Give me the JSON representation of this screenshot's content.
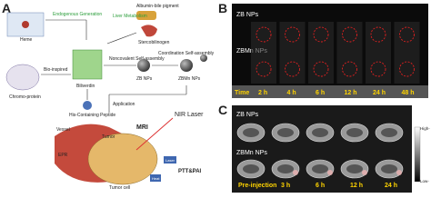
{
  "panel_a": {
    "label": "A",
    "heme": "Heme",
    "endogenous": "Endogenous Generation",
    "liver": "Liver Metabolism",
    "albumin": "Albumin-bile pigment",
    "stercobilinogen": "Stercobilinogen",
    "bio_inspired": "Bio-inspired",
    "chromoprotein": "Chromo-protein",
    "biliverdin": "Biliverdin",
    "peptide": "His-Containing Peptide",
    "noncovalent": "Noncovalent Self-assembly",
    "coordination": "Coordination Self-assembly",
    "zb": "ZB NPs",
    "zbmn": "ZBMn NPs",
    "application": "Application",
    "nir": "NIR Laser",
    "mri": "MRI",
    "vessel": "Vessel",
    "tumor": "Tumor",
    "epr": "EPR",
    "tumor_cell": "Tumor cell",
    "ptt": "PTT&PAI",
    "laser": "Laser",
    "heat": "Heat"
  },
  "panel_b": {
    "label": "B",
    "row1": "ZB NPs",
    "row2": "ZBMn NPs",
    "time_title": "Time",
    "times": [
      "2 h",
      "4 h",
      "6 h",
      "12 h",
      "24 h",
      "48 h"
    ]
  },
  "panel_c": {
    "label": "C",
    "row1": "ZB NPs",
    "row2": "ZBMn NPs",
    "times": [
      "Pre-injection",
      "3 h",
      "6 h",
      "12 h",
      "24 h"
    ],
    "high": "High-",
    "low": "Low-"
  }
}
